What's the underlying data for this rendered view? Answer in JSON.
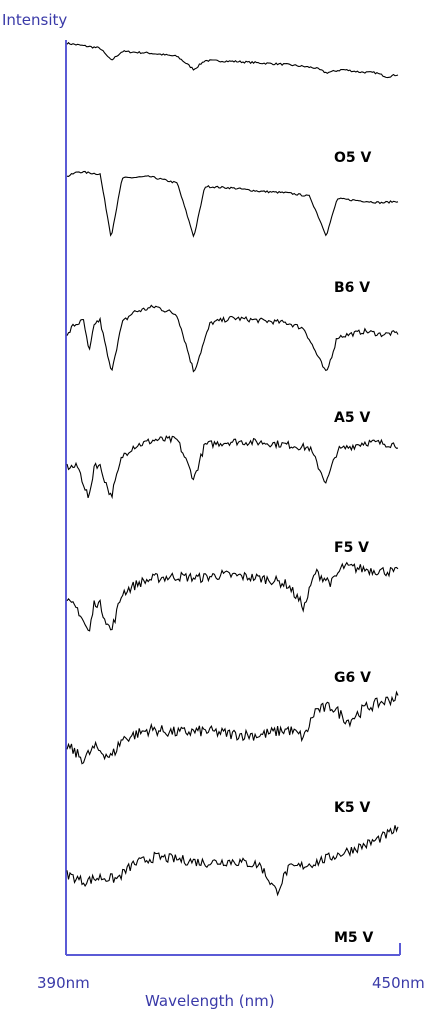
{
  "chart_data": {
    "type": "line",
    "ylabel": "Intensity",
    "xlabel": "Wavelength (nm)",
    "xlim": [
      390,
      450
    ],
    "x_tick_labels": [
      "390nm",
      "450nm"
    ],
    "grid": false,
    "legend": "none",
    "colors": {
      "axis": "#5b5bd6",
      "axis_text": "#3a3aa8",
      "line": "#000000"
    },
    "series": [
      {
        "name": "O5 V",
        "points": [
          [
            390,
            0.96
          ],
          [
            393,
            0.93
          ],
          [
            396,
            0.9
          ],
          [
            398,
            0.75
          ],
          [
            400,
            0.86
          ],
          [
            405,
            0.84
          ],
          [
            410,
            0.8
          ],
          [
            413,
            0.64
          ],
          [
            415,
            0.75
          ],
          [
            420,
            0.74
          ],
          [
            425,
            0.72
          ],
          [
            430,
            0.7
          ],
          [
            435,
            0.66
          ],
          [
            437,
            0.6
          ],
          [
            440,
            0.64
          ],
          [
            443,
            0.61
          ],
          [
            446,
            0.6
          ],
          [
            448,
            0.55
          ],
          [
            450,
            0.58
          ]
        ],
        "noise": 0.012
      },
      {
        "name": "B6 V",
        "points": [
          [
            390,
            0.92
          ],
          [
            392,
            0.98
          ],
          [
            396,
            0.95
          ],
          [
            398,
            0.18
          ],
          [
            400,
            0.9
          ],
          [
            405,
            0.92
          ],
          [
            410,
            0.84
          ],
          [
            413,
            0.18
          ],
          [
            415,
            0.8
          ],
          [
            420,
            0.78
          ],
          [
            425,
            0.74
          ],
          [
            430,
            0.72
          ],
          [
            434,
            0.68
          ],
          [
            437,
            0.2
          ],
          [
            439,
            0.65
          ],
          [
            444,
            0.62
          ],
          [
            447,
            0.6
          ],
          [
            450,
            0.62
          ]
        ],
        "noise": 0.012
      },
      {
        "name": "A5 V",
        "points": [
          [
            390,
            0.55
          ],
          [
            391,
            0.68
          ],
          [
            393,
            0.75
          ],
          [
            394,
            0.35
          ],
          [
            395,
            0.72
          ],
          [
            396,
            0.75
          ],
          [
            398,
            0.12
          ],
          [
            400,
            0.72
          ],
          [
            402,
            0.85
          ],
          [
            406,
            0.92
          ],
          [
            410,
            0.82
          ],
          [
            413,
            0.12
          ],
          [
            416,
            0.72
          ],
          [
            420,
            0.78
          ],
          [
            425,
            0.75
          ],
          [
            430,
            0.72
          ],
          [
            433,
            0.65
          ],
          [
            437,
            0.1
          ],
          [
            439,
            0.55
          ],
          [
            444,
            0.62
          ],
          [
            447,
            0.58
          ],
          [
            450,
            0.6
          ]
        ],
        "noise": 0.03
      },
      {
        "name": "F5 V",
        "points": [
          [
            390,
            0.55
          ],
          [
            392,
            0.55
          ],
          [
            394,
            0.15
          ],
          [
            395,
            0.6
          ],
          [
            396,
            0.55
          ],
          [
            398,
            0.18
          ],
          [
            400,
            0.68
          ],
          [
            402,
            0.8
          ],
          [
            406,
            0.88
          ],
          [
            410,
            0.88
          ],
          [
            413,
            0.4
          ],
          [
            415,
            0.82
          ],
          [
            420,
            0.86
          ],
          [
            425,
            0.85
          ],
          [
            430,
            0.82
          ],
          [
            434,
            0.78
          ],
          [
            437,
            0.35
          ],
          [
            439,
            0.75
          ],
          [
            444,
            0.85
          ],
          [
            447,
            0.84
          ],
          [
            450,
            0.82
          ]
        ],
        "noise": 0.045
      },
      {
        "name": "G6 V",
        "points": [
          [
            390,
            0.48
          ],
          [
            392,
            0.4
          ],
          [
            394,
            0.1
          ],
          [
            395,
            0.5
          ],
          [
            396,
            0.45
          ],
          [
            398,
            0.12
          ],
          [
            400,
            0.6
          ],
          [
            403,
            0.72
          ],
          [
            406,
            0.78
          ],
          [
            410,
            0.8
          ],
          [
            414,
            0.78
          ],
          [
            418,
            0.82
          ],
          [
            422,
            0.8
          ],
          [
            427,
            0.76
          ],
          [
            430,
            0.7
          ],
          [
            433,
            0.42
          ],
          [
            435,
            0.85
          ],
          [
            438,
            0.72
          ],
          [
            440,
            0.92
          ],
          [
            445,
            0.88
          ],
          [
            450,
            0.85
          ]
        ],
        "noise": 0.06
      },
      {
        "name": "K5 V",
        "points": [
          [
            390,
            0.32
          ],
          [
            393,
            0.15
          ],
          [
            395,
            0.3
          ],
          [
            398,
            0.18
          ],
          [
            400,
            0.4
          ],
          [
            405,
            0.52
          ],
          [
            410,
            0.48
          ],
          [
            415,
            0.5
          ],
          [
            420,
            0.46
          ],
          [
            425,
            0.45
          ],
          [
            430,
            0.52
          ],
          [
            433,
            0.42
          ],
          [
            435,
            0.75
          ],
          [
            438,
            0.8
          ],
          [
            441,
            0.62
          ],
          [
            444,
            0.78
          ],
          [
            447,
            0.85
          ],
          [
            450,
            0.92
          ]
        ],
        "noise": 0.07
      },
      {
        "name": "M5 V",
        "points": [
          [
            390,
            0.34
          ],
          [
            393,
            0.25
          ],
          [
            396,
            0.3
          ],
          [
            399,
            0.28
          ],
          [
            402,
            0.46
          ],
          [
            406,
            0.55
          ],
          [
            410,
            0.52
          ],
          [
            415,
            0.48
          ],
          [
            420,
            0.5
          ],
          [
            425,
            0.45
          ],
          [
            428,
            0.12
          ],
          [
            430,
            0.4
          ],
          [
            435,
            0.48
          ],
          [
            440,
            0.6
          ],
          [
            445,
            0.72
          ],
          [
            448,
            0.82
          ],
          [
            450,
            0.9
          ]
        ],
        "noise": 0.06
      }
    ]
  }
}
